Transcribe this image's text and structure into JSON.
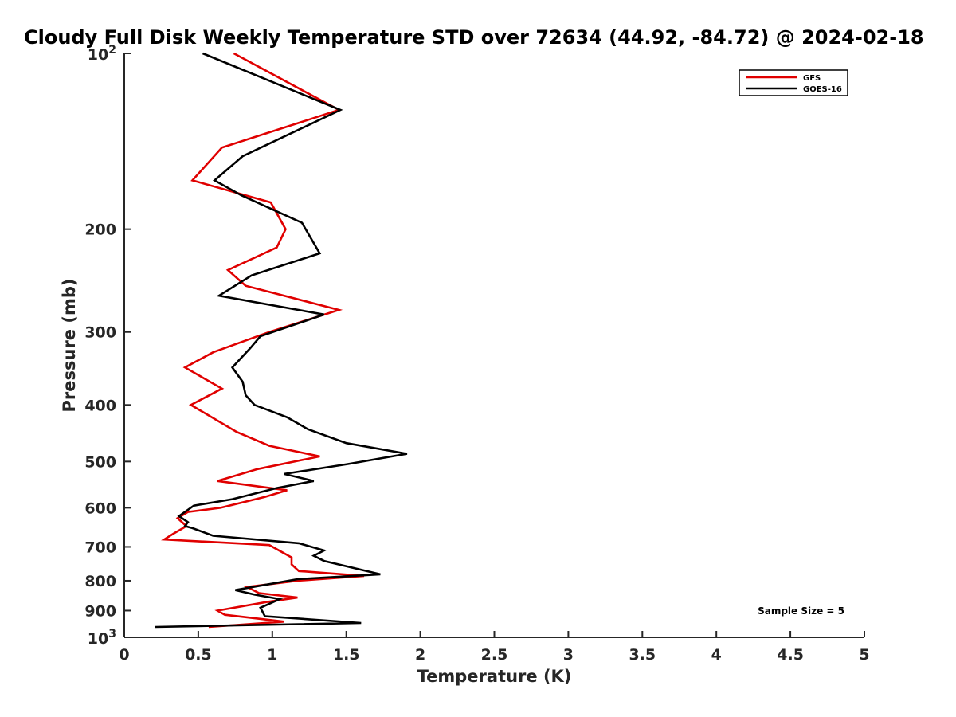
{
  "chart_data": {
    "type": "line",
    "title": "Cloudy Full Disk Weekly Temperature STD over 72634 (44.92, -84.72) @ 2024-02-18",
    "xlabel": "Temperature (K)",
    "ylabel": "Pressure (mb)",
    "xlim": [
      0,
      5
    ],
    "ylim": [
      100,
      1000
    ],
    "yscale": "log",
    "y_reversed": true,
    "xticks": [
      0,
      0.5,
      1,
      1.5,
      2,
      2.5,
      3,
      3.5,
      4,
      4.5,
      5
    ],
    "xtick_labels": [
      "0",
      "0.5",
      "1",
      "1.5",
      "2",
      "2.5",
      "3",
      "3.5",
      "4",
      "4.5",
      "5"
    ],
    "yticks": [
      200,
      300,
      400,
      500,
      600,
      700,
      800,
      900
    ],
    "ytick_labels": [
      "200",
      "300",
      "400",
      "500",
      "600",
      "700",
      "800",
      "900"
    ],
    "ylim_labels": {
      "base": "10",
      "top_exp": "2",
      "bottom_exp": "3"
    },
    "grid": false,
    "legend_position": "top-right",
    "annotation": "Sample Size = 5",
    "series": [
      {
        "name": "GFS",
        "color": "#e00000",
        "points": [
          [
            0.74,
            100
          ],
          [
            1.45,
            125
          ],
          [
            0.66,
            145
          ],
          [
            0.46,
            165
          ],
          [
            0.99,
            180
          ],
          [
            1.09,
            200
          ],
          [
            1.03,
            215
          ],
          [
            0.7,
            235
          ],
          [
            0.82,
            250
          ],
          [
            1.45,
            275
          ],
          [
            0.98,
            300
          ],
          [
            0.6,
            325
          ],
          [
            0.41,
            345
          ],
          [
            0.66,
            375
          ],
          [
            0.45,
            400
          ],
          [
            0.76,
            445
          ],
          [
            0.98,
            470
          ],
          [
            1.32,
            490
          ],
          [
            0.9,
            515
          ],
          [
            0.63,
            540
          ],
          [
            1.1,
            560
          ],
          [
            0.95,
            575
          ],
          [
            0.65,
            600
          ],
          [
            0.43,
            610
          ],
          [
            0.36,
            625
          ],
          [
            0.42,
            645
          ],
          [
            0.33,
            665
          ],
          [
            0.27,
            680
          ],
          [
            0.98,
            695
          ],
          [
            1.13,
            730
          ],
          [
            1.13,
            750
          ],
          [
            1.18,
            770
          ],
          [
            1.62,
            785
          ],
          [
            1.17,
            800
          ],
          [
            0.83,
            820
          ],
          [
            0.91,
            840
          ],
          [
            1.17,
            855
          ],
          [
            0.96,
            870
          ],
          [
            0.63,
            900
          ],
          [
            0.68,
            915
          ],
          [
            1.08,
            940
          ],
          [
            0.57,
            960
          ]
        ]
      },
      {
        "name": "GOES-16",
        "color": "#000000",
        "points": [
          [
            0.53,
            100
          ],
          [
            1.46,
            125
          ],
          [
            0.8,
            150
          ],
          [
            0.61,
            165
          ],
          [
            0.79,
            175
          ],
          [
            1.2,
            195
          ],
          [
            1.32,
            220
          ],
          [
            0.86,
            240
          ],
          [
            0.64,
            260
          ],
          [
            1.35,
            280
          ],
          [
            0.92,
            305
          ],
          [
            0.85,
            320
          ],
          [
            0.73,
            345
          ],
          [
            0.8,
            365
          ],
          [
            0.82,
            385
          ],
          [
            0.88,
            400
          ],
          [
            1.1,
            420
          ],
          [
            1.24,
            440
          ],
          [
            1.5,
            465
          ],
          [
            1.91,
            485
          ],
          [
            1.51,
            505
          ],
          [
            1.08,
            525
          ],
          [
            1.28,
            540
          ],
          [
            1.03,
            555
          ],
          [
            0.73,
            580
          ],
          [
            0.47,
            595
          ],
          [
            0.37,
            620
          ],
          [
            0.43,
            635
          ],
          [
            0.41,
            645
          ],
          [
            0.46,
            650
          ],
          [
            0.6,
            670
          ],
          [
            1.18,
            690
          ],
          [
            1.35,
            710
          ],
          [
            1.28,
            725
          ],
          [
            1.35,
            740
          ],
          [
            1.73,
            780
          ],
          [
            1.17,
            795
          ],
          [
            0.75,
            830
          ],
          [
            0.88,
            845
          ],
          [
            1.05,
            860
          ],
          [
            0.92,
            890
          ],
          [
            0.95,
            920
          ],
          [
            1.6,
            945
          ],
          [
            0.21,
            960
          ]
        ]
      }
    ]
  }
}
